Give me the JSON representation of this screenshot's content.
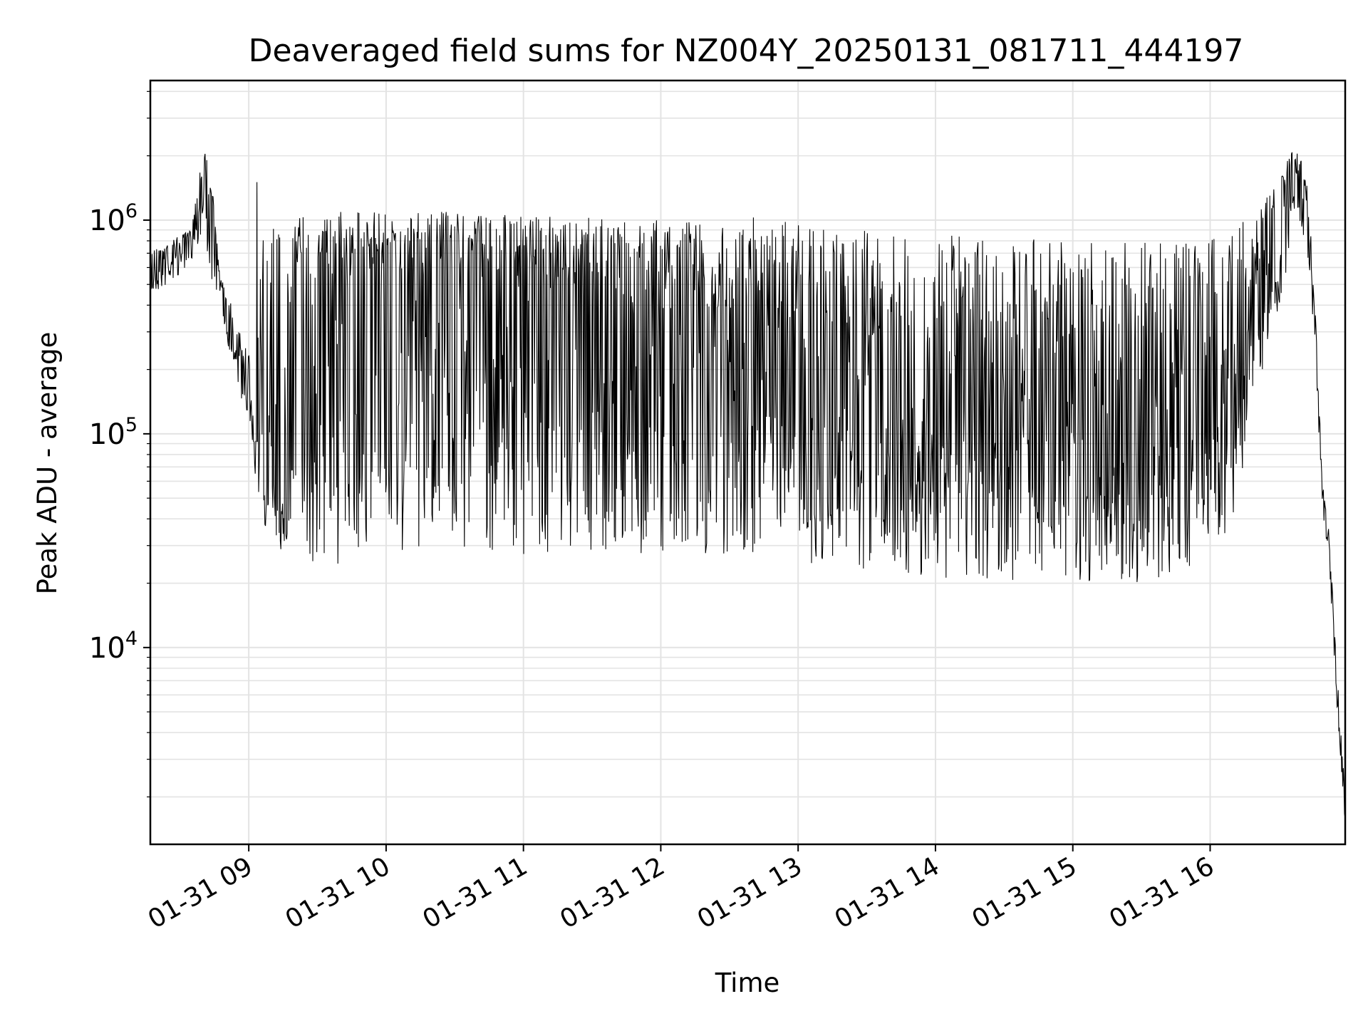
{
  "chart_data": {
    "type": "line",
    "title": "Deaveraged field sums for NZ004Y_20250131_081711_444197",
    "xlabel": "Time",
    "ylabel": "Peak ADU - average",
    "x_scale": "time",
    "y_scale": "log",
    "grid": {
      "major": true,
      "minor_y": true
    },
    "legend": "none",
    "xlim": [
      "01-31 08:17",
      "01-31 16:59"
    ],
    "ylim": [
      1200,
      4500000
    ],
    "xticks": [
      {
        "label": "01-31 09",
        "time": "01-31 09:00"
      },
      {
        "label": "01-31 10",
        "time": "01-31 10:00"
      },
      {
        "label": "01-31 11",
        "time": "01-31 11:00"
      },
      {
        "label": "01-31 12",
        "time": "01-31 12:00"
      },
      {
        "label": "01-31 13",
        "time": "01-31 13:00"
      },
      {
        "label": "01-31 14",
        "time": "01-31 14:00"
      },
      {
        "label": "01-31 15",
        "time": "01-31 15:00"
      },
      {
        "label": "01-31 16",
        "time": "01-31 16:00"
      }
    ],
    "yticks": [
      {
        "base": "10",
        "exp": "4",
        "value": 10000
      },
      {
        "base": "10",
        "exp": "5",
        "value": 100000
      },
      {
        "base": "10",
        "exp": "6",
        "value": 1000000
      }
    ],
    "line_color": "#000000",
    "series": [
      {
        "x": [
          "01-31 08:17",
          "01-31 08:20",
          "01-31 08:25",
          "01-31 08:30",
          "01-31 08:35",
          "01-31 08:40",
          "01-31 08:44",
          "01-31 08:47",
          "01-31 08:50",
          "01-31 08:53",
          "01-31 08:56",
          "01-31 09:00",
          "01-31 09:03",
          "01-31 09:06",
          "01-31 09:10",
          "01-31 09:15",
          "01-31 09:20",
          "01-31 09:30",
          "01-31 09:45",
          "01-31 10:00",
          "01-31 10:15",
          "01-31 10:30",
          "01-31 10:45",
          "01-31 11:00",
          "01-31 11:15",
          "01-31 11:30",
          "01-31 11:45",
          "01-31 12:00",
          "01-31 12:15",
          "01-31 12:30",
          "01-31 12:45",
          "01-31 13:00",
          "01-31 13:15",
          "01-31 13:30",
          "01-31 13:45",
          "01-31 14:00",
          "01-31 14:15",
          "01-31 14:30",
          "01-31 14:45",
          "01-31 15:00",
          "01-31 15:15",
          "01-31 15:30",
          "01-31 15:45",
          "01-31 16:00",
          "01-31 16:10",
          "01-31 16:20",
          "01-31 16:30",
          "01-31 16:36",
          "01-31 16:40",
          "01-31 16:43",
          "01-31 16:46",
          "01-31 16:49",
          "01-31 16:52",
          "01-31 16:55",
          "01-31 16:58",
          "01-31 16:59"
        ],
        "y": [
          550000,
          650000,
          700000,
          750000,
          850000,
          1500000,
          1300000,
          550000,
          400000,
          320000,
          250000,
          180000,
          110000,
          70000,
          60000,
          55000,
          600000,
          500000,
          550000,
          600000,
          500000,
          550000,
          480000,
          500000,
          450000,
          420000,
          380000,
          350000,
          330000,
          320000,
          350000,
          150000,
          130000,
          140000,
          120000,
          100000,
          110000,
          115000,
          105000,
          100000,
          95000,
          90000,
          100000,
          110000,
          180000,
          350000,
          700000,
          1300000,
          1400000,
          900000,
          300000,
          50000,
          30000,
          8000,
          2500,
          1700
        ],
        "band_high": [
          700000,
          800000,
          800000,
          850000,
          900000,
          2500000,
          1500000,
          600000,
          450000,
          400000,
          300000,
          250000,
          1800000,
          1200000,
          1100000,
          1100000,
          1100000,
          1100000,
          1100000,
          1100000,
          1100000,
          1100000,
          1100000,
          1050000,
          1050000,
          1050000,
          1000000,
          1050000,
          1050000,
          1000000,
          1050000,
          950000,
          900000,
          900000,
          900000,
          850000,
          850000,
          850000,
          850000,
          800000,
          800000,
          800000,
          800000,
          850000,
          900000,
          1100000,
          1500000,
          2200000,
          2000000,
          1300000,
          400000,
          60000,
          35000,
          9000,
          3000,
          2000
        ],
        "band_low": [
          420000,
          460000,
          500000,
          550000,
          650000,
          900000,
          500000,
          450000,
          280000,
          220000,
          150000,
          110000,
          60000,
          40000,
          30000,
          28000,
          25000,
          24000,
          25000,
          26000,
          27000,
          28000,
          28000,
          27000,
          27000,
          28000,
          27000,
          26000,
          27000,
          25000,
          27000,
          25000,
          24000,
          22000,
          22000,
          21000,
          21000,
          20000,
          20000,
          20000,
          21000,
          20000,
          22000,
          26000,
          35000,
          150000,
          400000,
          700000,
          800000,
          600000,
          200000,
          45000,
          25000,
          6000,
          2000,
          1500
        ]
      }
    ]
  }
}
